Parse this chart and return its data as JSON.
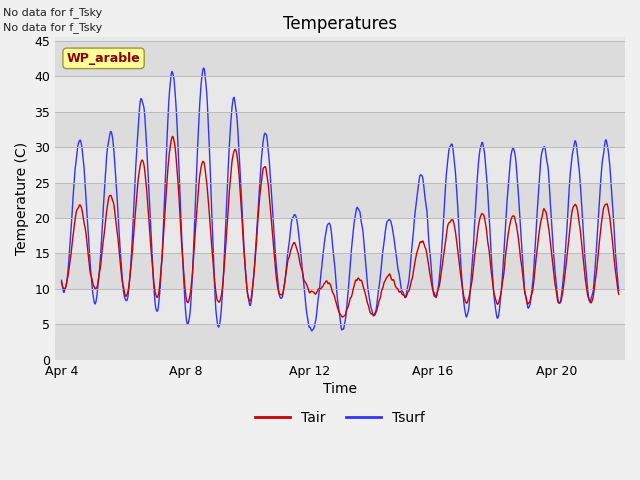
{
  "title": "Temperatures",
  "xlabel": "Time",
  "ylabel": "Temperature (C)",
  "ylim": [
    0,
    45
  ],
  "yticks": [
    0,
    5,
    10,
    15,
    20,
    25,
    30,
    35,
    40,
    45
  ],
  "xtick_positions": [
    0,
    4,
    8,
    12,
    16
  ],
  "xtick_labels": [
    "Apr 4",
    "Apr 8",
    "Apr 12",
    "Apr 16",
    "Apr 20"
  ],
  "annotation_lines": [
    "No data for f_Tsky",
    "No data for f_Tsky"
  ],
  "wp_label": "WP_arable",
  "legend_entries": [
    "Tair",
    "Tsurf"
  ],
  "line_colors": [
    "#cc0000",
    "#3333ff"
  ],
  "figsize": [
    6.4,
    4.8
  ],
  "dpi": 100,
  "band_colors_even": "#dcdcdc",
  "band_colors_odd": "#e8e8e8",
  "fig_bg": "#f0f0f0"
}
